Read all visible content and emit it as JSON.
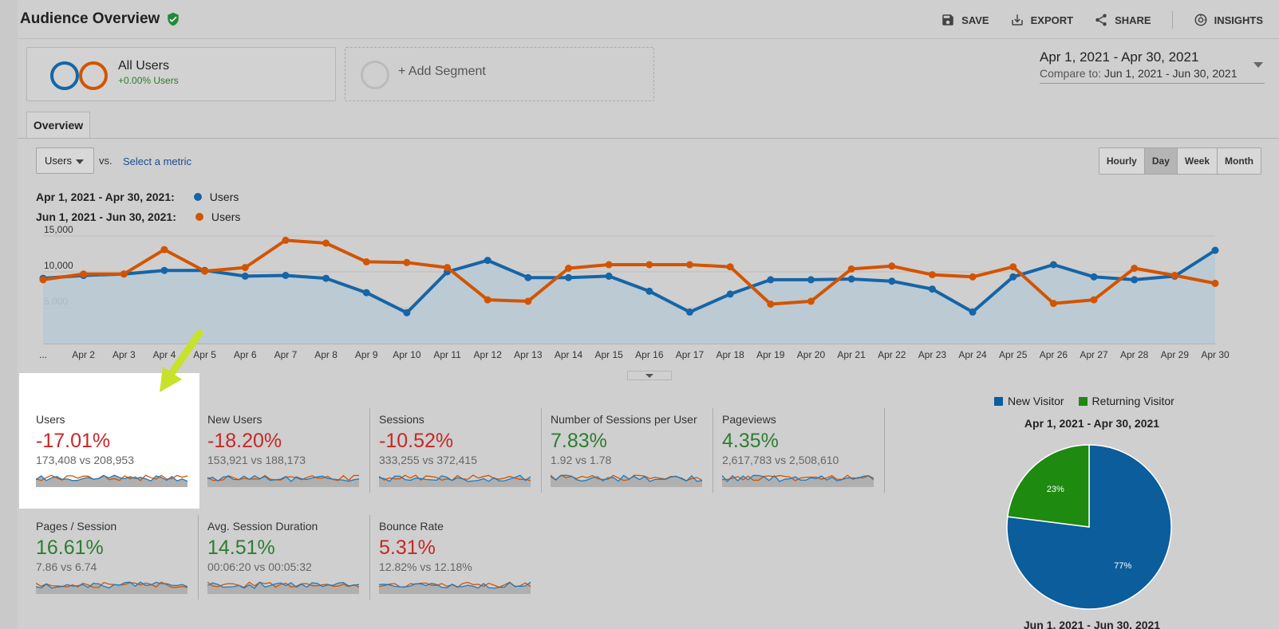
{
  "header": {
    "title": "Audience Overview"
  },
  "actions": [
    {
      "label": "SAVE",
      "icon": "save-icon"
    },
    {
      "label": "EXPORT",
      "icon": "export-icon"
    },
    {
      "label": "SHARE",
      "icon": "share-icon"
    },
    {
      "label": "INSIGHTS",
      "icon": "insights-icon"
    }
  ],
  "segments": {
    "active": {
      "name": "All Users",
      "sub": "+0.00% Users"
    },
    "add": "+ Add Segment"
  },
  "daterange": {
    "main": "Apr 1, 2021 - Apr 30, 2021",
    "compare_label": "Compare to:",
    "compare": "Jun 1, 2021 - Jun 30, 2021"
  },
  "tabs": [
    "Overview"
  ],
  "metric": {
    "selected": "Users",
    "vs": "vs.",
    "select": "Select a metric"
  },
  "granularity": [
    {
      "label": "Hourly",
      "active": false
    },
    {
      "label": "Day",
      "active": true
    },
    {
      "label": "Week",
      "active": false
    },
    {
      "label": "Month",
      "active": false
    }
  ],
  "legend": [
    {
      "range": "Apr 1, 2021 - Apr 30, 2021:",
      "series": "Users",
      "color": "#1565a7"
    },
    {
      "range": "Jun 1, 2021 - Jun 30, 2021:",
      "series": "Users",
      "color": "#d35400"
    }
  ],
  "chart_data": {
    "type": "line",
    "x": [
      "...",
      "Apr 2",
      "Apr 3",
      "Apr 4",
      "Apr 5",
      "Apr 6",
      "Apr 7",
      "Apr 8",
      "Apr 9",
      "Apr 10",
      "Apr 11",
      "Apr 12",
      "Apr 13",
      "Apr 14",
      "Apr 15",
      "Apr 16",
      "Apr 17",
      "Apr 18",
      "Apr 19",
      "Apr 20",
      "Apr 21",
      "Apr 22",
      "Apr 23",
      "Apr 24",
      "Apr 25",
      "Apr 26",
      "Apr 27",
      "Apr 28",
      "Apr 29",
      "Apr 30"
    ],
    "yticks": [
      "5,000",
      "10,000",
      "15,000"
    ],
    "ylim": [
      0,
      16000
    ],
    "series": [
      {
        "color": "#1565a7",
        "area": true,
        "values": [
          9100,
          9500,
          9700,
          10200,
          10200,
          9400,
          9500,
          9100,
          7100,
          4300,
          10000,
          11600,
          9200,
          9200,
          9400,
          7300,
          4400,
          6900,
          8900,
          8900,
          9000,
          8700,
          7600,
          4400,
          9300,
          11000,
          9300,
          8900,
          9400,
          13000
        ]
      },
      {
        "color": "#d35400",
        "area": false,
        "values": [
          8900,
          9700,
          9700,
          13100,
          10100,
          10600,
          14400,
          14000,
          11400,
          11300,
          10600,
          6100,
          5900,
          10500,
          11000,
          11000,
          11000,
          10700,
          5500,
          5900,
          10400,
          10800,
          9600,
          9300,
          10700,
          5600,
          6100,
          10500,
          9500,
          8400
        ]
      }
    ]
  },
  "tiles_row1": [
    {
      "title": "Users",
      "pct": "-17.01%",
      "cmp": "173,408 vs 208,953",
      "trend": "down"
    },
    {
      "title": "New Users",
      "pct": "-18.20%",
      "cmp": "153,921 vs 188,173",
      "trend": "down"
    },
    {
      "title": "Sessions",
      "pct": "-10.52%",
      "cmp": "333,255 vs 372,415",
      "trend": "down"
    },
    {
      "title": "Number of Sessions per User",
      "pct": "7.83%",
      "cmp": "1.92 vs 1.78",
      "trend": "up"
    },
    {
      "title": "Pageviews",
      "pct": "4.35%",
      "cmp": "2,617,783 vs 2,508,610",
      "trend": "up"
    }
  ],
  "tiles_row2": [
    {
      "title": "Pages / Session",
      "pct": "16.61%",
      "cmp": "7.86 vs 6.74",
      "trend": "up"
    },
    {
      "title": "Avg. Session Duration",
      "pct": "14.51%",
      "cmp": "00:06:20 vs 00:05:32",
      "trend": "up"
    },
    {
      "title": "Bounce Rate",
      "pct": "5.31%",
      "cmp": "12.82% vs 12.18%",
      "trend": "down"
    }
  ],
  "pie": {
    "legend": [
      {
        "label": "New Visitor",
        "color": "#0b5d9c"
      },
      {
        "label": "Returning Visitor",
        "color": "#1e8a10"
      }
    ],
    "date1": "Apr 1, 2021 - Apr 30, 2021",
    "date2": "Jun 1, 2021 - Jun 30, 2021",
    "slices": [
      {
        "label": "77%",
        "value": 77,
        "color": "#0b5d9c"
      },
      {
        "label": "23%",
        "value": 23,
        "color": "#1e8a10"
      }
    ]
  }
}
